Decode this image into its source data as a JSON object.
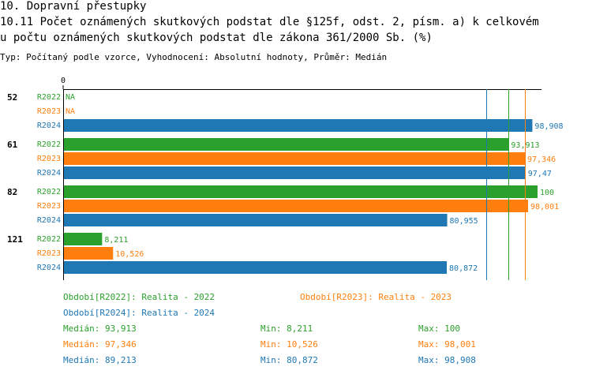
{
  "header": {
    "section": "10. Dopravní přestupky",
    "title_line1": "10.11 Počet oznámených skutkových podstat dle §125f, odst. 2, písm. a) k celkovém",
    "title_line2": "u počtu oznámených skutkových podstat dle zákona 361/2000 Sb. (%)",
    "subtitle": "Typ: Počítaný podle vzorce, Vyhodnocení: Absolutní hodnoty, Průměr: Medián"
  },
  "colors": {
    "R2022": "#2ca02c",
    "R2023": "#ff7f0e",
    "R2024": "#1f77b4"
  },
  "chart_data": {
    "type": "bar",
    "orientation": "horizontal",
    "x_tick_label": "0",
    "xlim": [
      0,
      100
    ],
    "categories": [
      "52",
      "61",
      "82",
      "121"
    ],
    "series_keys": [
      "R2022",
      "R2023",
      "R2024"
    ],
    "rows": [
      {
        "category": "52",
        "bars": [
          {
            "series": "R2022",
            "value": null,
            "label": "NA"
          },
          {
            "series": "R2023",
            "value": null,
            "label": "NA"
          },
          {
            "series": "R2024",
            "value": 98.908,
            "label": "98,908"
          }
        ]
      },
      {
        "category": "61",
        "bars": [
          {
            "series": "R2022",
            "value": 93.913,
            "label": "93,913"
          },
          {
            "series": "R2023",
            "value": 97.346,
            "label": "97,346"
          },
          {
            "series": "R2024",
            "value": 97.47,
            "label": "97,47"
          }
        ]
      },
      {
        "category": "82",
        "bars": [
          {
            "series": "R2022",
            "value": 100,
            "label": "100"
          },
          {
            "series": "R2023",
            "value": 98.001,
            "label": "98,001"
          },
          {
            "series": "R2024",
            "value": 80.955,
            "label": "80,955"
          }
        ]
      },
      {
        "category": "121",
        "bars": [
          {
            "series": "R2022",
            "value": 8.211,
            "label": "8,211"
          },
          {
            "series": "R2023",
            "value": 10.526,
            "label": "10,526"
          },
          {
            "series": "R2024",
            "value": 80.872,
            "label": "80,872"
          }
        ]
      }
    ],
    "reference_lines": [
      {
        "series": "R2024",
        "value": 89.213
      },
      {
        "series": "R2022",
        "value": 93.913
      },
      {
        "series": "R2023",
        "value": 97.346
      }
    ]
  },
  "legend": {
    "R2022": "Období[R2022]: Realita - 2022",
    "R2023": "Období[R2023]: Realita - 2023",
    "R2024": "Období[R2024]: Realita - 2024"
  },
  "stats": {
    "R2022": {
      "median": "Medián: 93,913",
      "min": "Min: 8,211",
      "max": "Max: 100"
    },
    "R2023": {
      "median": "Medián: 97,346",
      "min": "Min: 10,526",
      "max": "Max: 98,001"
    },
    "R2024": {
      "median": "Medián: 89,213",
      "min": "Min: 80,872",
      "max": "Max: 98,908"
    }
  }
}
